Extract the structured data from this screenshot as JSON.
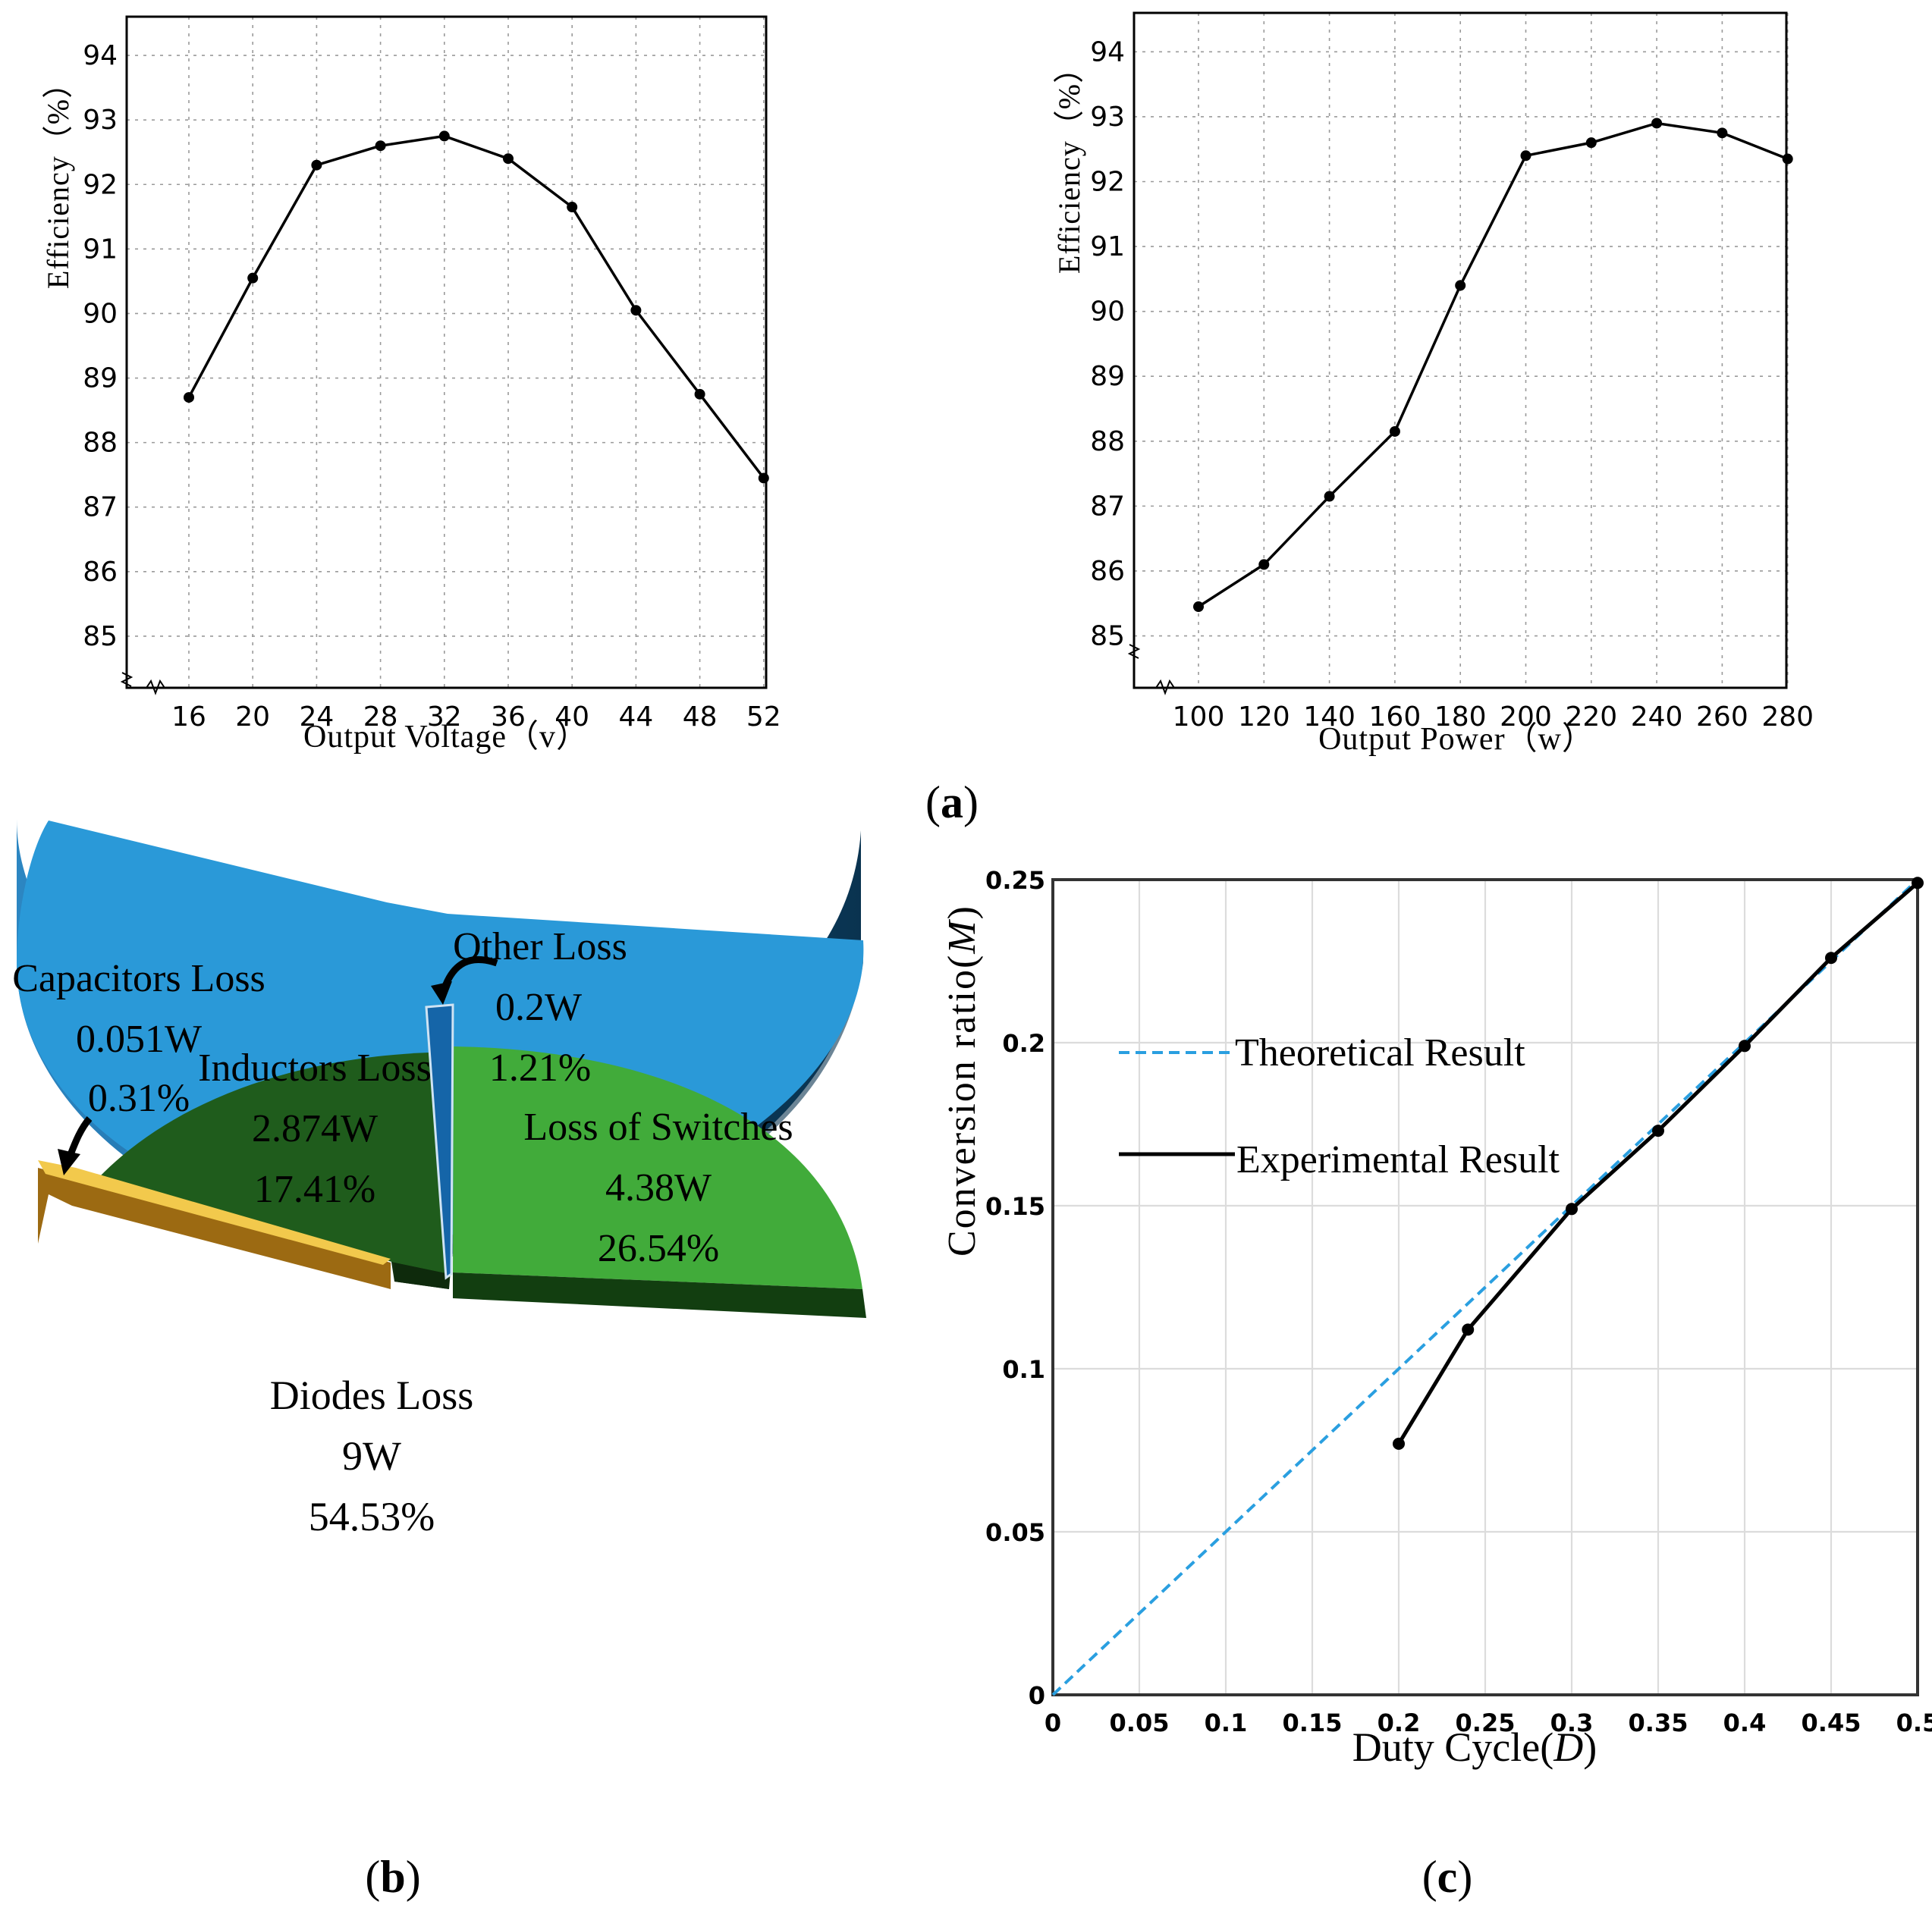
{
  "chart_data": [
    {
      "type": "line",
      "panel": "a-left",
      "xlabel": "Output Voltage（v）",
      "ylabel": "Efficiency（%）",
      "x": [
        16,
        20,
        24,
        28,
        32,
        36,
        40,
        44,
        48,
        52
      ],
      "x_ticks": [
        "16",
        "20",
        "24",
        "28",
        "32",
        "36",
        "40",
        "44",
        "48",
        "52"
      ],
      "series": [
        {
          "name": "Efficiency",
          "values": [
            88.7,
            90.55,
            92.3,
            92.6,
            92.75,
            92.4,
            91.65,
            90.05,
            88.75,
            87.45
          ]
        }
      ],
      "y_ticks": [
        "85",
        "86",
        "87",
        "88",
        "89",
        "90",
        "91",
        "92",
        "93",
        "94"
      ],
      "ylim": [
        84.2,
        94.6
      ],
      "grid": true,
      "axis_break": true
    },
    {
      "type": "line",
      "panel": "a-right",
      "xlabel": "Output Power（w）",
      "ylabel": "Efficiency（%）",
      "x": [
        100,
        120,
        140,
        160,
        180,
        200,
        220,
        240,
        260,
        280
      ],
      "x_ticks": [
        "100",
        "120",
        "140",
        "160",
        "180",
        "200",
        "220",
        "240",
        "260",
        "280"
      ],
      "series": [
        {
          "name": "Efficiency",
          "values": [
            85.45,
            86.1,
            87.15,
            88.15,
            90.4,
            92.4,
            92.6,
            92.9,
            92.75,
            92.35
          ]
        }
      ],
      "y_ticks": [
        "85",
        "86",
        "87",
        "88",
        "89",
        "90",
        "91",
        "92",
        "93",
        "94"
      ],
      "ylim": [
        84.2,
        94.6
      ],
      "grid": true,
      "axis_break": true
    },
    {
      "type": "pie",
      "panel": "b",
      "style": "3d-exploded",
      "slices": [
        {
          "name": "Diodes Loss",
          "value_label": "9W",
          "percent_label": "54.53%",
          "percent": 54.53,
          "color": "#2596d6"
        },
        {
          "name": "Loss of Switches",
          "value_label": "4.38W",
          "percent_label": "26.54%",
          "percent": 26.54,
          "color": "#41ab3a"
        },
        {
          "name": "Inductors Loss",
          "value_label": "2.874W",
          "percent_label": "17.41%",
          "percent": 17.41,
          "color": "#1f5c1c"
        },
        {
          "name": "Other Loss",
          "value_label": "0.2W",
          "percent_label": "1.21%",
          "percent": 1.21,
          "color": "#1565a8"
        },
        {
          "name": "Capacitors Loss",
          "value_label": "0.051W",
          "percent_label": "0.31%",
          "percent": 0.31,
          "color": "#9c6a12"
        }
      ]
    },
    {
      "type": "line",
      "panel": "c",
      "xlabel_text": "Duty Cycle(",
      "xlabel_var": "D",
      "xlabel_close": ")",
      "ylabel_text": "Conversion ratio(",
      "ylabel_var": "M",
      "ylabel_close": ")",
      "xlim": [
        0,
        0.5
      ],
      "ylim": [
        0,
        0.25
      ],
      "x_ticks": [
        "0",
        "0.05",
        "0.1",
        "0.15",
        "0.2",
        "0.25",
        "0.3",
        "0.35",
        "0.4",
        "0.45",
        "0.5"
      ],
      "y_ticks": [
        "0",
        "0.05",
        "0.1",
        "0.15",
        "0.2",
        "0.25"
      ],
      "series": [
        {
          "name": "Theoretical Result",
          "style": "dashed",
          "color": "#2a9fe0",
          "x": [
            0,
            0.5
          ],
          "y": [
            0,
            0.25
          ]
        },
        {
          "name": "Experimental Result",
          "style": "solid",
          "color": "#000000",
          "x": [
            0.2,
            0.24,
            0.3,
            0.35,
            0.4,
            0.45,
            0.5
          ],
          "y": [
            0.077,
            0.112,
            0.149,
            0.173,
            0.199,
            0.226,
            0.249
          ]
        }
      ],
      "grid": true,
      "legend_position": "top-left"
    }
  ],
  "panel_labels": {
    "a": "a",
    "b": "b",
    "c": "c"
  }
}
